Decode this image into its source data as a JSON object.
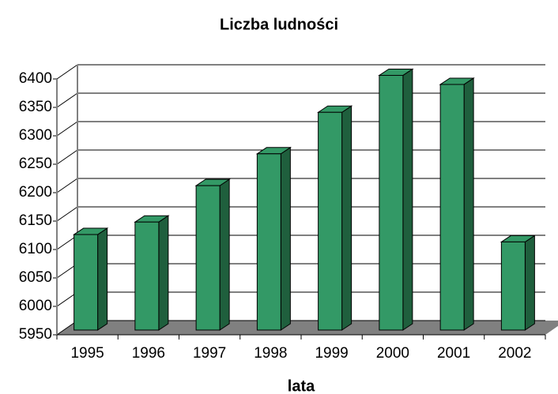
{
  "chart_data": {
    "type": "bar",
    "title": "Liczba ludności",
    "x_label": "lata",
    "categories": [
      "1995",
      "1996",
      "1997",
      "1998",
      "1999",
      "2000",
      "2001",
      "2002"
    ],
    "values": [
      6118,
      6140,
      6204,
      6260,
      6333,
      6398,
      6382,
      6105
    ],
    "color": "#339966",
    "ylim": [
      5950,
      6400
    ],
    "yticks": [
      5950,
      6000,
      6050,
      6100,
      6150,
      6200,
      6250,
      6300,
      6350,
      6400
    ],
    "grid": true
  }
}
